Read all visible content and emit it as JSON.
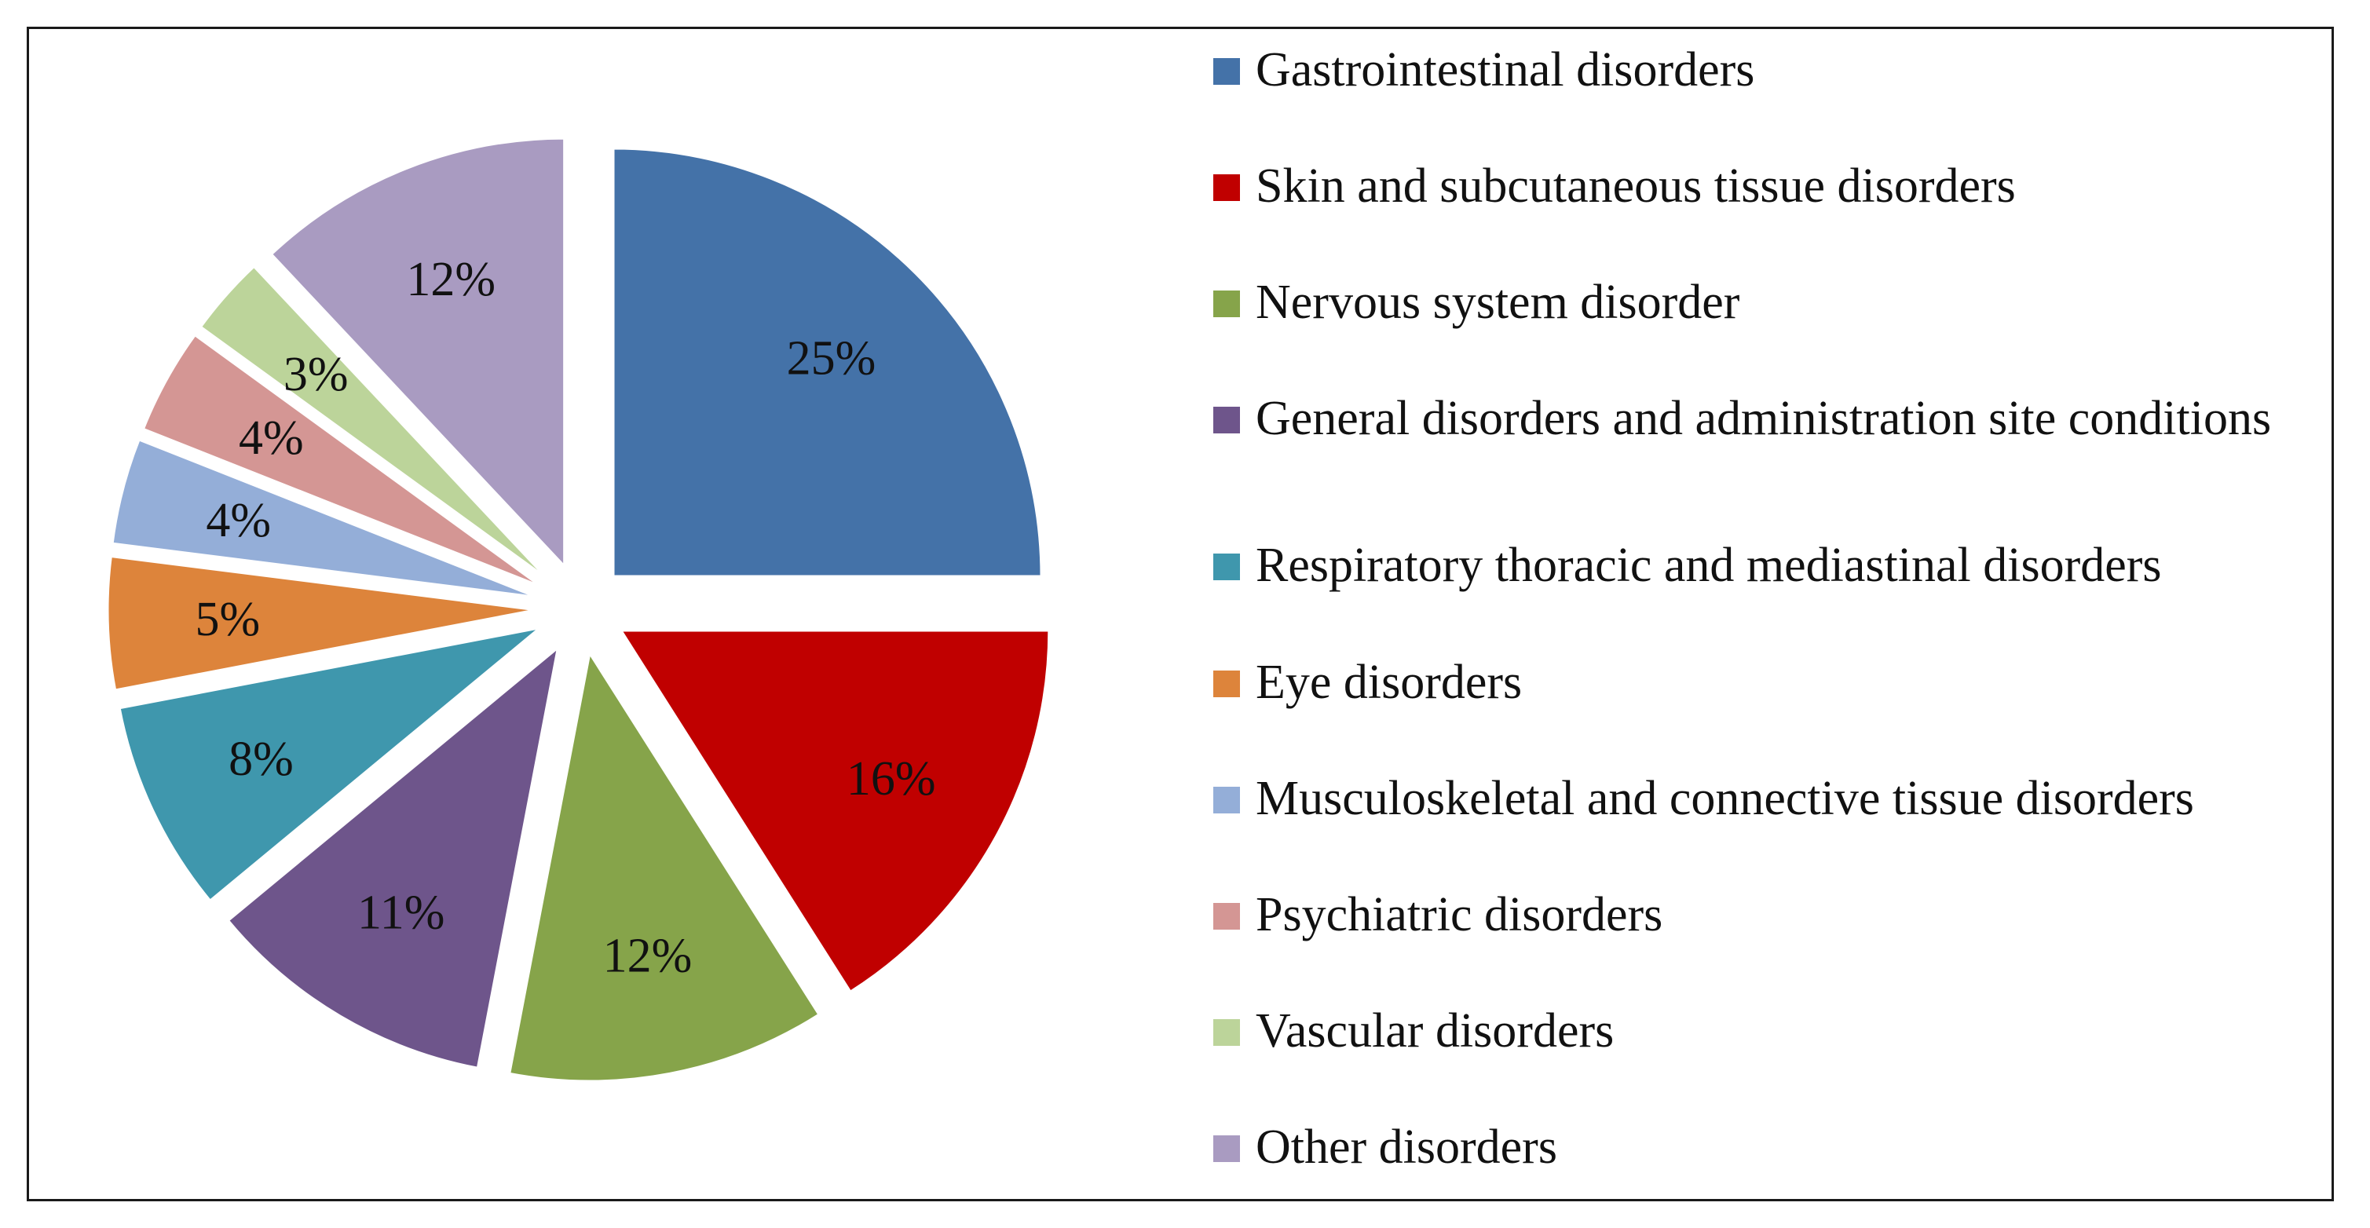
{
  "chart_data": {
    "type": "pie",
    "title": "",
    "slices": [
      {
        "label": "Gastrointestinal disorders",
        "value": 25,
        "display": "25%",
        "color": "#4472a8"
      },
      {
        "label": "Skin and subcutaneous tissue disorders",
        "value": 16,
        "display": "16%",
        "color": "#c00000"
      },
      {
        "label": "Nervous system disorder",
        "value": 12,
        "display": "12%",
        "color": "#86a44a"
      },
      {
        "label": "General disorders and administration site conditions",
        "value": 11,
        "display": "11%",
        "color": "#6e558b"
      },
      {
        "label": "Respiratory thoracic and mediastinal disorders",
        "value": 8,
        "display": "8%",
        "color": "#3f97ad"
      },
      {
        "label": "Eye disorders",
        "value": 5,
        "display": "5%",
        "color": "#dd843b"
      },
      {
        "label": "Musculoskeletal and connective tissue disorders",
        "value": 4,
        "display": "4%",
        "color": "#94aed8"
      },
      {
        "label": "Psychiatric disorders",
        "value": 4,
        "display": "4%",
        "color": "#d49694"
      },
      {
        "label": "Vascular disorders",
        "value": 3,
        "display": "3%",
        "color": "#bcd49a"
      },
      {
        "label": "Other disorders",
        "value": 12,
        "display": "12%",
        "color": "#a99bc1"
      }
    ],
    "legend_position": "right",
    "start_angle": "12 o'clock, clockwise",
    "exploded": true
  }
}
